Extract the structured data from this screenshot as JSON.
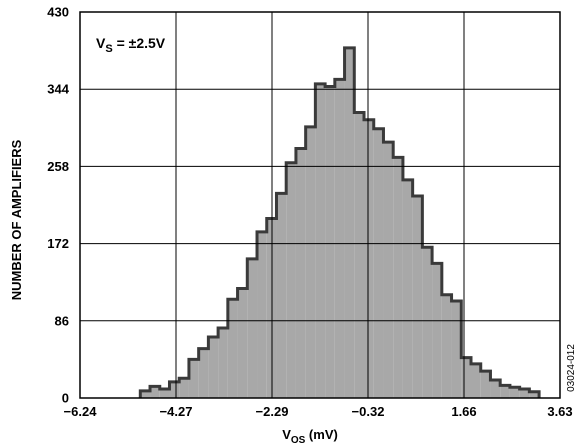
{
  "chart_data": {
    "type": "histogram",
    "annotation": {
      "main": "V",
      "sub": "S",
      "rest": " = ±2.5V"
    },
    "xlabel": {
      "main": "V",
      "sub": "OS",
      "rest": " (mV)"
    },
    "ylabel": "NUMBER OF AMPLIFIERS",
    "figure_id": "03024-012",
    "xlim": [
      -6.24,
      3.63
    ],
    "ylim": [
      0,
      430
    ],
    "x_ticks": [
      "−6.24",
      "−4.27",
      "−2.29",
      "−0.32",
      "1.66",
      "3.63"
    ],
    "y_ticks": [
      "0",
      "86",
      "172",
      "258",
      "344",
      "430"
    ],
    "grid": true,
    "fill_color": "#a8a8a8",
    "outline_color": "#3a3a3a",
    "bin_start": -5.0,
    "bin_width": 0.2,
    "counts": [
      8,
      13,
      10,
      18,
      22,
      43,
      55,
      68,
      78,
      110,
      122,
      155,
      185,
      200,
      228,
      262,
      278,
      302,
      350,
      347,
      355,
      390,
      318,
      310,
      300,
      285,
      268,
      243,
      225,
      168,
      150,
      115,
      108,
      45,
      38,
      30,
      20,
      14,
      12,
      10,
      7
    ]
  }
}
